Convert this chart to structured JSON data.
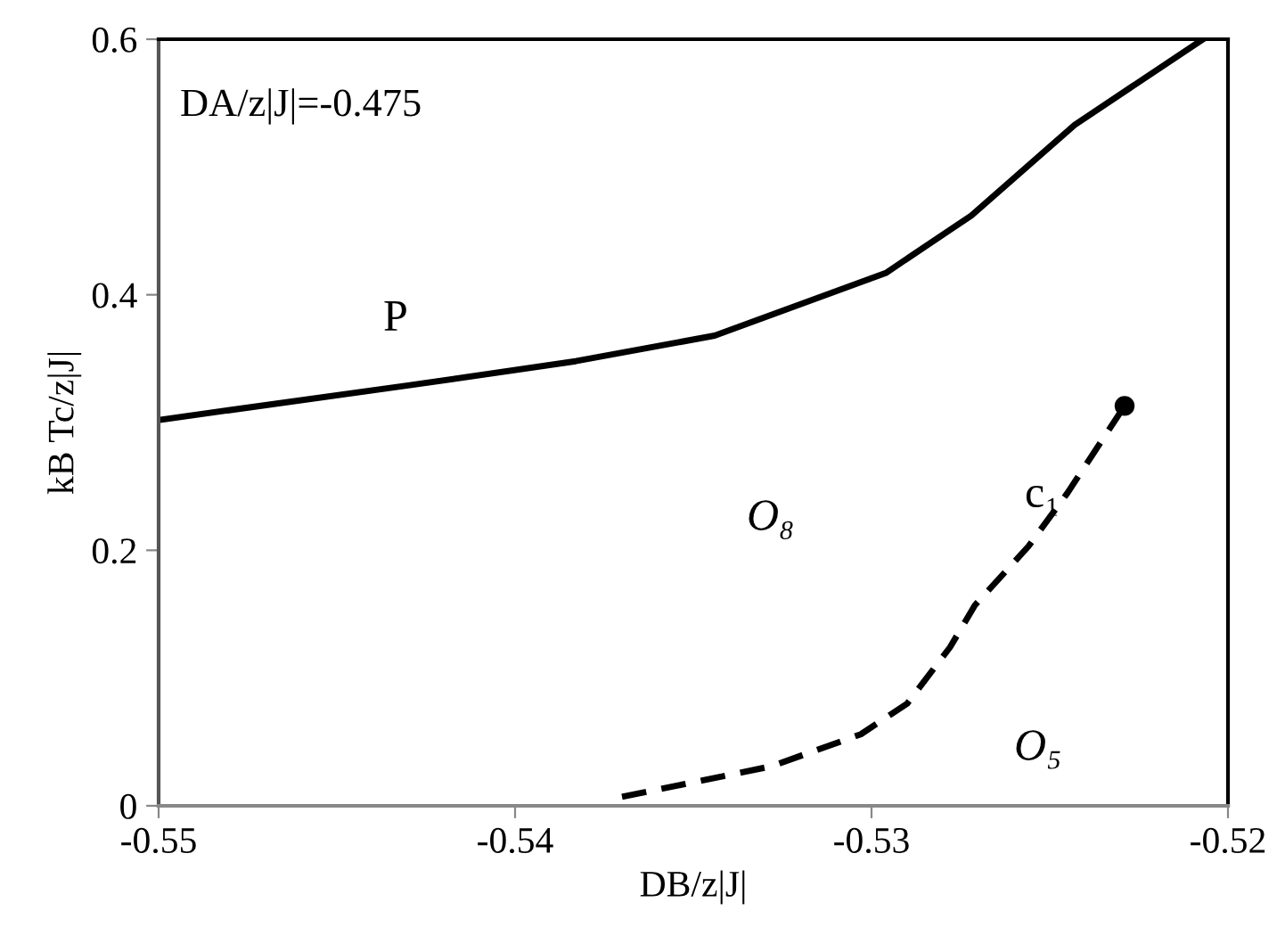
{
  "chart_data": {
    "type": "line",
    "xlabel": "DB/z|J|",
    "ylabel": "kB Tc/z|J|",
    "xlim": [
      -0.55,
      -0.52
    ],
    "xticks": [
      -0.55,
      -0.54,
      -0.53,
      -0.52
    ],
    "ylim": [
      0,
      0.6
    ],
    "yticks": [
      0,
      0.2,
      0.4,
      0.6
    ],
    "grid": false,
    "series": [
      {
        "color": "#000000",
        "line_style": "solid",
        "x": [
          -0.55,
          -0.543,
          -0.5383,
          -0.5344,
          -0.5296,
          -0.5272,
          -0.5243,
          -0.5207
        ],
        "values": [
          0.302,
          0.329,
          0.348,
          0.368,
          0.417,
          0.462,
          0.533,
          0.6
        ]
      },
      {
        "color": "#000000",
        "line_style": "dashed",
        "x": [
          -0.537,
          -0.5328,
          -0.5303,
          -0.529,
          -0.5278,
          -0.5271,
          -0.5256,
          -0.5245,
          -0.5229
        ],
        "values": [
          0.007,
          0.031,
          0.056,
          0.08,
          0.124,
          0.157,
          0.203,
          0.245,
          0.313
        ]
      },
      {
        "type": "scatter",
        "color": "#000000",
        "marker": "circle",
        "x": [
          -0.5229
        ],
        "values": [
          0.313
        ]
      }
    ],
    "annotations": [
      "DA/z|J|=-0.475",
      "P",
      "O₈",
      "c₁",
      "O₅"
    ]
  }
}
